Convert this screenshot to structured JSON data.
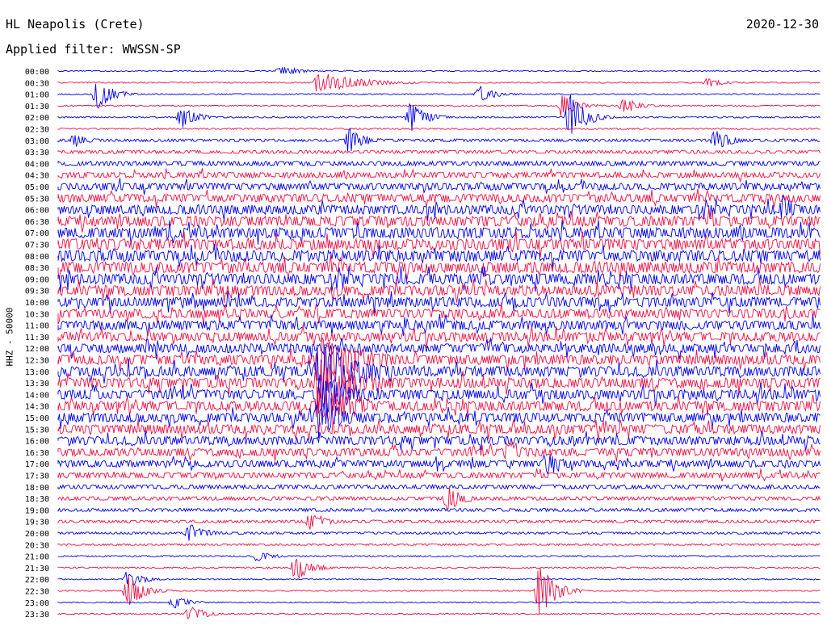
{
  "header": {
    "station": "HL Neapolis (Crete)",
    "date": "2020-12-30",
    "filter": "Applied filter: WWSSN-SP"
  },
  "axis": {
    "ylabel": "HHZ - 50000"
  },
  "colors": {
    "blue": "#0000ee",
    "red": "#ee1144",
    "bg": "#ffffff"
  },
  "chart_data": {
    "type": "line",
    "title": "HL Neapolis (Crete)",
    "subtitle": "Applied filter: WWSSN-SP",
    "date": "2020-12-30",
    "ylabel": "HHZ - 50000",
    "traces": [
      "00:00",
      "00:30",
      "01:00",
      "01:30",
      "02:00",
      "02:30",
      "03:00",
      "03:30",
      "04:00",
      "04:30",
      "05:00",
      "05:30",
      "06:00",
      "06:30",
      "07:00",
      "07:30",
      "08:00",
      "08:30",
      "09:00",
      "09:30",
      "10:00",
      "10:30",
      "11:00",
      "11:30",
      "12:00",
      "12:30",
      "13:00",
      "13:30",
      "14:00",
      "14:30",
      "15:00",
      "15:30",
      "16:00",
      "16:30",
      "17:00",
      "17:30",
      "18:00",
      "18:30",
      "19:00",
      "19:30",
      "20:00",
      "20:30",
      "21:00",
      "21:30",
      "22:00",
      "22:30",
      "23:00",
      "23:30"
    ],
    "trace_colors": [
      "blue",
      "red"
    ],
    "noise_level": [
      0.4,
      0.5,
      0.5,
      0.5,
      0.6,
      0.6,
      1.2,
      1.4,
      2.0,
      2.4,
      3.0,
      3.6,
      4.0,
      4.4,
      4.6,
      4.8,
      4.8,
      4.8,
      4.6,
      4.4,
      4.2,
      4.0,
      4.0,
      4.0,
      4.0,
      4.2,
      4.4,
      4.4,
      4.2,
      4.2,
      4.0,
      4.0,
      3.8,
      3.4,
      3.0,
      2.4,
      1.8,
      1.6,
      1.4,
      1.2,
      1.0,
      0.8,
      0.6,
      0.6,
      0.5,
      0.5,
      0.5,
      0.5
    ],
    "events": [
      {
        "trace": 0,
        "t": 0.29,
        "amp": 6
      },
      {
        "trace": 1,
        "t": 0.34,
        "amp": 10,
        "dur": 0.05
      },
      {
        "trace": 1,
        "t": 0.85,
        "amp": 5
      },
      {
        "trace": 2,
        "t": 0.05,
        "amp": 14
      },
      {
        "trace": 2,
        "t": 0.55,
        "amp": 8
      },
      {
        "trace": 3,
        "t": 0.66,
        "amp": 10
      },
      {
        "trace": 3,
        "t": 0.74,
        "amp": 8
      },
      {
        "trace": 4,
        "t": 0.16,
        "amp": 10
      },
      {
        "trace": 4,
        "t": 0.46,
        "amp": 14
      },
      {
        "trace": 4,
        "t": 0.67,
        "amp": 22
      },
      {
        "trace": 6,
        "t": 0.02,
        "amp": 6
      },
      {
        "trace": 6,
        "t": 0.38,
        "amp": 12
      },
      {
        "trace": 6,
        "t": 0.86,
        "amp": 10
      },
      {
        "trace": 12,
        "t": 0.95,
        "amp": 12
      },
      {
        "trace": 25,
        "t": 0.34,
        "amp": 24,
        "dur": 0.06
      },
      {
        "trace": 26,
        "t": 0.34,
        "amp": 24,
        "dur": 0.06
      },
      {
        "trace": 27,
        "t": 0.34,
        "amp": 22,
        "dur": 0.06
      },
      {
        "trace": 28,
        "t": 0.34,
        "amp": 20,
        "dur": 0.05
      },
      {
        "trace": 29,
        "t": 0.34,
        "amp": 18,
        "dur": 0.05
      },
      {
        "trace": 30,
        "t": 0.34,
        "amp": 18,
        "dur": 0.04
      },
      {
        "trace": 33,
        "t": 0.59,
        "amp": 14
      },
      {
        "trace": 34,
        "t": 0.64,
        "amp": 14
      },
      {
        "trace": 37,
        "t": 0.51,
        "amp": 12
      },
      {
        "trace": 39,
        "t": 0.33,
        "amp": 10
      },
      {
        "trace": 40,
        "t": 0.17,
        "amp": 10
      },
      {
        "trace": 42,
        "t": 0.26,
        "amp": 5
      },
      {
        "trace": 43,
        "t": 0.31,
        "amp": 12
      },
      {
        "trace": 44,
        "t": 0.09,
        "amp": 8
      },
      {
        "trace": 45,
        "t": 0.09,
        "amp": 16
      },
      {
        "trace": 45,
        "t": 0.63,
        "amp": 24
      },
      {
        "trace": 46,
        "t": 0.15,
        "amp": 6
      },
      {
        "trace": 47,
        "t": 0.17,
        "amp": 8
      }
    ]
  }
}
